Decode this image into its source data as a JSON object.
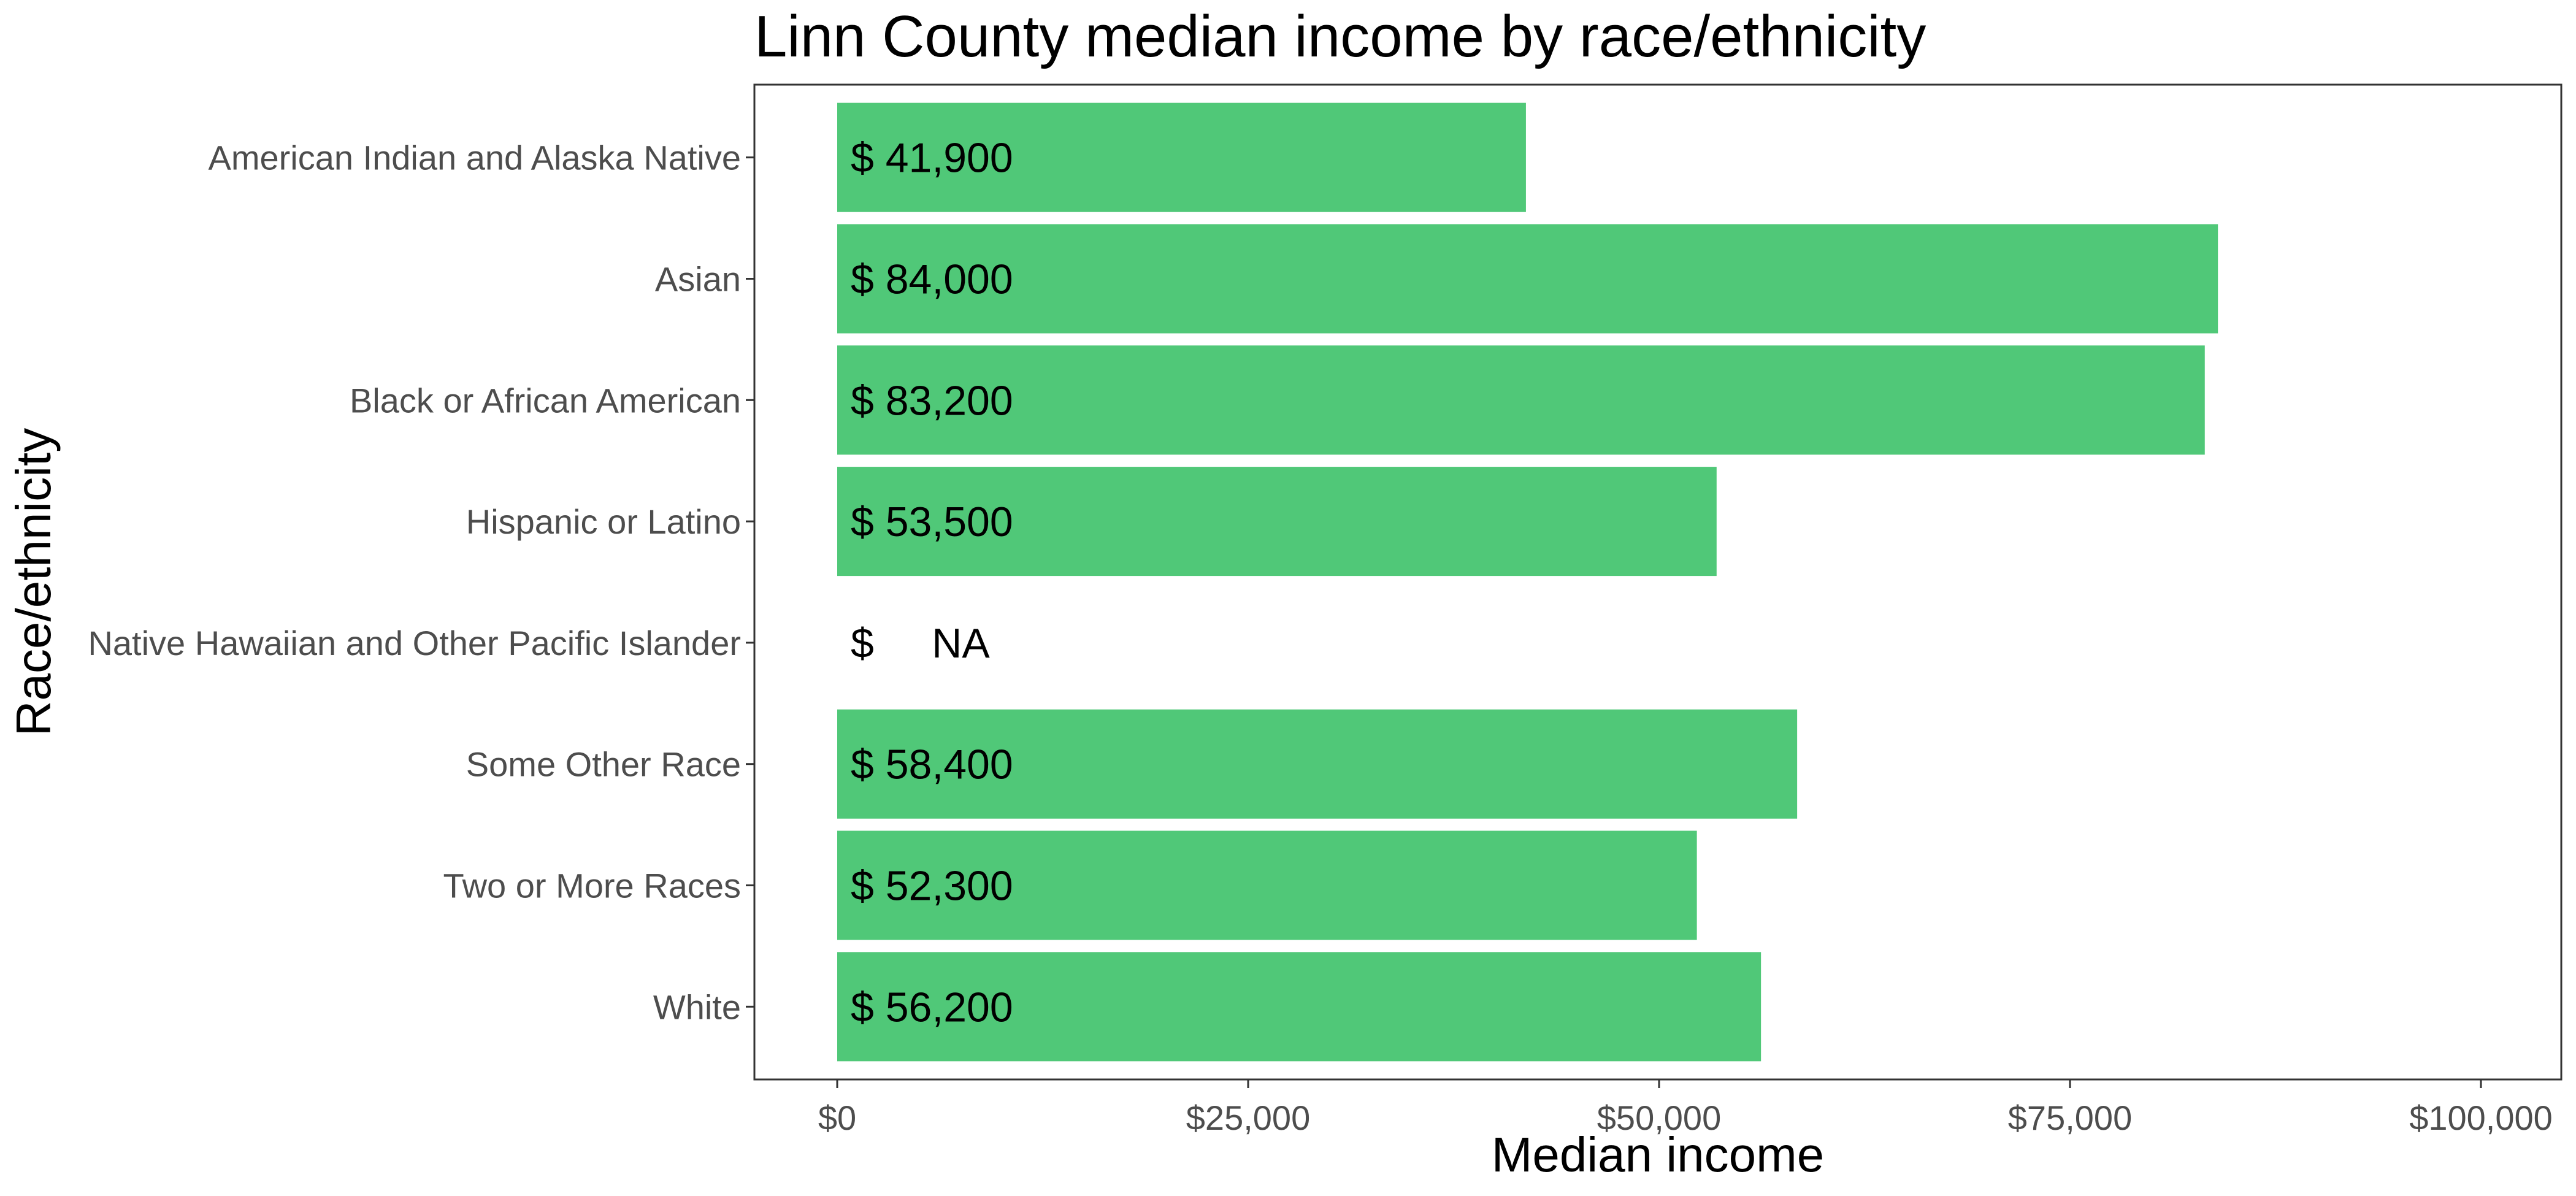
{
  "chart_data": {
    "type": "bar",
    "orientation": "horizontal",
    "title": "Linn County median income by race/ethnicity",
    "xlabel": "Median income",
    "ylabel": "Race/ethnicity",
    "categories": [
      "American Indian and Alaska Native",
      "Asian",
      "Black or African American",
      "Hispanic or Latino",
      "Native Hawaiian and Other Pacific Islander",
      "Some Other Race",
      "Two or More Races",
      "White"
    ],
    "values": [
      41900,
      84000,
      83200,
      53500,
      null,
      58400,
      52300,
      56200
    ],
    "data_labels": [
      "$ 41,900",
      "$ 84,000",
      "$ 83,200",
      "$ 53,500",
      "$     NA",
      "$ 58,400",
      "$ 52,300",
      "$ 56,200"
    ],
    "x_ticks": [
      0,
      25000,
      50000,
      75000,
      100000
    ],
    "x_tick_labels": [
      "$0",
      "$25,000",
      "$50,000",
      "$75,000",
      "$100,000"
    ],
    "xlim": [
      -5000,
      105000
    ],
    "bar_color": "#50c878",
    "grid": false,
    "legend": "none"
  }
}
